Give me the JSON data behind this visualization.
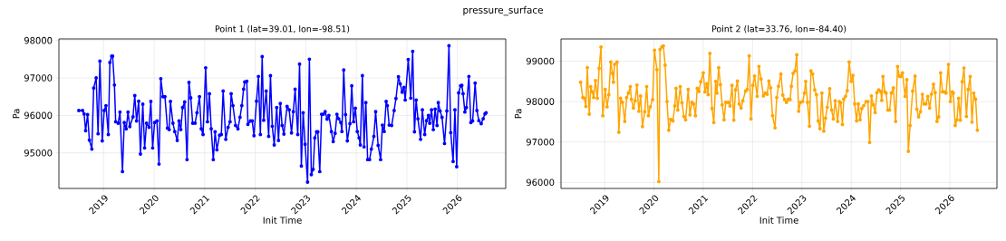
{
  "chart_data": [
    {
      "type": "line",
      "title": "Point 1 (lat=39.01, lon=-98.51)",
      "xlabel": "Init Time",
      "ylabel": "Pa",
      "annotations": [
        "pressure_surface"
      ],
      "x": [
        "2018-07-06",
        "2018-08-02",
        "2018-08-13",
        "2018-08-24",
        "2018-09-07",
        "2018-09-20",
        "2018-10-08",
        "2018-10-21",
        "2018-11-08",
        "2018-11-22",
        "2018-12-05",
        "2018-12-22",
        "2019-01-05",
        "2019-01-18",
        "2019-02-04",
        "2019-02-15",
        "2019-02-28",
        "2019-03-07",
        "2019-03-20",
        "2019-03-29",
        "2019-04-16",
        "2019-04-29",
        "2019-05-17",
        "2019-05-30",
        "2019-06-13",
        "2019-06-26",
        "2019-07-09",
        "2019-08-01",
        "2019-08-14",
        "2019-08-27",
        "2019-09-11",
        "2019-09-24",
        "2019-10-11",
        "2019-10-24",
        "2019-11-07",
        "2019-11-25",
        "2019-12-08",
        "2019-12-21",
        "2020-01-04",
        "2020-01-21",
        "2020-02-05",
        "2020-02-18",
        "2020-03-05",
        "2020-03-19",
        "2020-04-06",
        "2020-04-19",
        "2020-04-28",
        "2020-05-16",
        "2020-05-29",
        "2020-06-16",
        "2020-06-29",
        "2020-07-12",
        "2020-07-25",
        "2020-08-09",
        "2020-08-26",
        "2020-09-09",
        "2020-09-22",
        "2020-10-06",
        "2020-10-23",
        "2020-11-06",
        "2020-11-24",
        "2020-12-07",
        "2020-12-20",
        "2021-01-08",
        "2021-01-21",
        "2021-02-04",
        "2021-02-17",
        "2021-03-04",
        "2021-03-17",
        "2021-03-30",
        "2021-04-18",
        "2021-05-01",
        "2021-05-14",
        "2021-06-02",
        "2021-06-19",
        "2021-07-03",
        "2021-07-11",
        "2021-07-24",
        "2021-08-12",
        "2021-08-29",
        "2021-09-13",
        "2021-09-26",
        "2021-10-09",
        "2021-10-17",
        "2021-11-01",
        "2021-11-09",
        "2021-11-27",
        "2021-12-10",
        "2021-12-23",
        "2022-01-10",
        "2022-01-24",
        "2022-02-07",
        "2022-02-20",
        "2022-03-03",
        "2022-03-21",
        "2022-04-08",
        "2022-04-21",
        "2022-05-04",
        "2022-05-18",
        "2022-06-05",
        "2022-06-18",
        "2022-07-01",
        "2022-07-14",
        "2022-07-27",
        "2022-08-19",
        "2022-09-03",
        "2022-09-20",
        "2022-10-03",
        "2022-10-16",
        "2022-11-04",
        "2022-11-17",
        "2022-11-30",
        "2022-12-13",
        "2022-12-27",
        "2023-01-14",
        "2023-01-27",
        "2023-02-10",
        "2023-02-23",
        "2023-03-07",
        "2023-03-20",
        "2023-03-29",
        "2023-04-12",
        "2023-04-25",
        "2023-05-08",
        "2023-05-21",
        "2023-06-04",
        "2023-06-17",
        "2023-07-05",
        "2023-07-18",
        "2023-08-01",
        "2023-08-14",
        "2023-08-27",
        "2023-09-11",
        "2023-09-19",
        "2023-10-02",
        "2023-10-15",
        "2023-10-28",
        "2023-11-16",
        "2023-11-29",
        "2023-12-12",
        "2023-12-25",
        "2024-01-08",
        "2024-01-21",
        "2024-01-30",
        "2024-02-14",
        "2024-02-26",
        "2024-03-10",
        "2024-03-23",
        "2024-04-06",
        "2024-04-19",
        "2024-05-07",
        "2024-05-20",
        "2024-06-07",
        "2024-06-25",
        "2024-07-08",
        "2024-07-21",
        "2024-08-04",
        "2024-08-13",
        "2024-08-26",
        "2024-09-13",
        "2024-10-01",
        "2024-10-14",
        "2024-11-01",
        "2024-11-14",
        "2024-11-28",
        "2024-12-11",
        "2024-12-20",
        "2025-01-11",
        "2025-01-29",
        "2025-02-12",
        "2025-02-25",
        "2025-03-09",
        "2025-03-22",
        "2025-04-10",
        "2025-04-23",
        "2025-05-10",
        "2025-05-23",
        "2025-06-06",
        "2025-06-15",
        "2025-06-28",
        "2025-07-11",
        "2025-07-24",
        "2025-08-07",
        "2025-08-16",
        "2025-08-29",
        "2025-09-12",
        "2025-09-30",
        "2025-10-17",
        "2025-11-01",
        "2025-11-14",
        "2025-12-01",
        "2025-12-14",
        "2025-12-27",
        "2026-01-10",
        "2026-01-24",
        "2026-02-02",
        "2026-02-11",
        "2026-02-24",
        "2026-03-07",
        "2026-03-25",
        "2026-04-08",
        "2026-04-21",
        "2026-05-09",
        "2026-05-22",
        "2026-06-05",
        "2026-06-22",
        "2026-07-06",
        "2026-07-19",
        "2026-07-27"
      ],
      "series": [
        {
          "color": "#0000ff",
          "values": [
            96130,
            96130,
            96040,
            95590,
            96020,
            95340,
            95100,
            96730,
            97000,
            95510,
            97450,
            95320,
            96130,
            96260,
            95490,
            97410,
            97580,
            97580,
            96810,
            95830,
            95790,
            96090,
            94500,
            95810,
            95640,
            96090,
            95700,
            95960,
            96530,
            95850,
            96380,
            94970,
            96300,
            95130,
            95790,
            95680,
            96370,
            95130,
            95810,
            95850,
            94700,
            96980,
            96500,
            96500,
            95660,
            95620,
            96370,
            95790,
            95570,
            95330,
            95850,
            95620,
            96210,
            96360,
            94820,
            96880,
            96470,
            95790,
            95790,
            96070,
            96500,
            95640,
            95490,
            97270,
            95830,
            96580,
            95640,
            94820,
            95560,
            95080,
            95470,
            95490,
            96650,
            95360,
            95680,
            95830,
            96580,
            96260,
            95730,
            95640,
            95950,
            96260,
            96700,
            96890,
            96910,
            95760,
            95850,
            95850,
            95460,
            96380,
            97040,
            95490,
            97570,
            95870,
            96650,
            95440,
            97060,
            95710,
            95210,
            96210,
            95330,
            96320,
            95730,
            95500,
            96240,
            96150,
            95530,
            96100,
            96700,
            95490,
            97370,
            94650,
            96070,
            95230,
            94220,
            97500,
            94420,
            94560,
            95400,
            95560,
            95560,
            94500,
            96030,
            96030,
            96100,
            95900,
            96000,
            95570,
            95300,
            95520,
            96030,
            95910,
            95810,
            95570,
            97210,
            96020,
            95320,
            95780,
            96790,
            95830,
            96190,
            95570,
            95400,
            95210,
            97060,
            95160,
            96340,
            94820,
            94820,
            95100,
            95440,
            96100,
            95200,
            94820,
            95740,
            95570,
            96370,
            96260,
            95740,
            95730,
            96130,
            96450,
            97030,
            96840,
            96620,
            96750,
            96410,
            97490,
            96460,
            97710,
            95560,
            96410,
            95910,
            95360,
            96150,
            95490,
            95860,
            96000,
            95790,
            96150,
            95620,
            96170,
            95730,
            96340,
            96120,
            95950,
            95250,
            96120,
            97860,
            95540,
            94770,
            96150,
            94630,
            96600,
            96790,
            96800,
            96580,
            96090,
            96210,
            97040,
            95810,
            95850,
            96860,
            96130,
            95860,
            95780,
            95910,
            96040,
            96070
          ]
        }
      ],
      "xlim": [
        "2018-02-12",
        "2026-12-16"
      ],
      "xticks": [
        "2019",
        "2020",
        "2021",
        "2022",
        "2023",
        "2024",
        "2025",
        "2026"
      ],
      "ylim": [
        94050,
        98040
      ],
      "yticks": [
        95000,
        96000,
        97000,
        98000
      ],
      "grid": true,
      "marker": "circle",
      "line_style": "solid"
    },
    {
      "type": "line",
      "title": "Point 2 (lat=33.76, lon=-84.40)",
      "xlabel": "Init Time",
      "ylabel": "Pa",
      "x": [
        "2018-07-07",
        "2018-07-23",
        "2018-08-04",
        "2018-08-15",
        "2018-08-26",
        "2018-09-09",
        "2018-09-20",
        "2018-10-01",
        "2018-10-12",
        "2018-10-25",
        "2018-11-08",
        "2018-11-21",
        "2018-12-05",
        "2018-12-18",
        "2019-01-05",
        "2019-01-19",
        "2019-02-01",
        "2019-02-15",
        "2019-02-28",
        "2019-03-07",
        "2019-03-15",
        "2019-04-03",
        "2019-04-16",
        "2019-04-29",
        "2019-05-13",
        "2019-05-30",
        "2019-06-13",
        "2019-06-26",
        "2019-07-10",
        "2019-07-18",
        "2019-08-02",
        "2019-08-15",
        "2019-08-28",
        "2019-09-11",
        "2019-09-24",
        "2019-10-08",
        "2019-10-25",
        "2019-11-08",
        "2019-11-21",
        "2019-12-05",
        "2019-12-22",
        "2020-01-05",
        "2020-01-23",
        "2020-02-06",
        "2020-02-15",
        "2020-02-28",
        "2020-03-11",
        "2020-03-24",
        "2020-04-07",
        "2020-04-20",
        "2020-05-04",
        "2020-05-21",
        "2020-06-04",
        "2020-06-13",
        "2020-06-26",
        "2020-07-14",
        "2020-07-27",
        "2020-08-10",
        "2020-08-23",
        "2020-09-11",
        "2020-09-24",
        "2020-10-08",
        "2020-10-21",
        "2020-11-04",
        "2020-11-17",
        "2020-11-30",
        "2020-12-13",
        "2021-01-01",
        "2021-01-14",
        "2021-01-27",
        "2021-02-06",
        "2021-02-19",
        "2021-03-07",
        "2021-03-20",
        "2021-04-03",
        "2021-04-12",
        "2021-04-25",
        "2021-05-08",
        "2021-05-21",
        "2021-06-04",
        "2021-06-17",
        "2021-07-05",
        "2021-07-18",
        "2021-08-02",
        "2021-08-15",
        "2021-08-28",
        "2021-09-11",
        "2021-09-24",
        "2021-10-08",
        "2021-10-21",
        "2021-11-10",
        "2021-11-23",
        "2021-12-07",
        "2021-12-20",
        "2022-01-03",
        "2022-01-16",
        "2022-02-04",
        "2022-02-17",
        "2022-03-05",
        "2022-03-22",
        "2022-04-06",
        "2022-04-19",
        "2022-05-02",
        "2022-05-15",
        "2022-05-29",
        "2022-06-16",
        "2022-06-29",
        "2022-07-12",
        "2022-07-30",
        "2022-08-13",
        "2022-08-26",
        "2022-09-09",
        "2022-09-23",
        "2022-10-06",
        "2022-10-15",
        "2022-10-28",
        "2022-11-11",
        "2022-11-24",
        "2022-12-08",
        "2022-12-21",
        "2023-01-07",
        "2023-01-20",
        "2023-01-29",
        "2023-02-12",
        "2023-02-26",
        "2023-03-09",
        "2023-03-22",
        "2023-04-06",
        "2023-04-19",
        "2023-05-02",
        "2023-05-15",
        "2023-05-29",
        "2023-06-12",
        "2023-06-25",
        "2023-07-08",
        "2023-07-26",
        "2023-08-09",
        "2023-08-22",
        "2023-09-05",
        "2023-09-23",
        "2023-10-06",
        "2023-10-15",
        "2023-10-28",
        "2023-11-07",
        "2023-11-20",
        "2023-12-03",
        "2023-12-17",
        "2024-01-01",
        "2024-01-14",
        "2024-01-27",
        "2024-02-10",
        "2024-02-23",
        "2024-03-07",
        "2024-03-20",
        "2024-04-03",
        "2024-04-21",
        "2024-05-04",
        "2024-05-17",
        "2024-05-30",
        "2024-06-13",
        "2024-06-27",
        "2024-07-10",
        "2024-07-23",
        "2024-08-07",
        "2024-08-15",
        "2024-08-24",
        "2024-09-07",
        "2024-09-16",
        "2024-09-29",
        "2024-10-12",
        "2024-10-25",
        "2024-11-09",
        "2024-11-26",
        "2024-12-10",
        "2024-12-23",
        "2025-01-03",
        "2025-01-16",
        "2025-02-04",
        "2025-02-17",
        "2025-02-28",
        "2025-03-13",
        "2025-04-01",
        "2025-04-19",
        "2025-05-02",
        "2025-05-15",
        "2025-05-29",
        "2025-06-12",
        "2025-06-25",
        "2025-07-08",
        "2025-07-22",
        "2025-08-05",
        "2025-08-18",
        "2025-09-02",
        "2025-09-15",
        "2025-09-28",
        "2025-10-11",
        "2025-10-25",
        "2025-11-08",
        "2025-11-21",
        "2025-12-04",
        "2025-12-22",
        "2026-01-05",
        "2026-01-19",
        "2026-01-27",
        "2026-02-10",
        "2026-02-23",
        "2026-03-07",
        "2026-03-20",
        "2026-04-03",
        "2026-04-16",
        "2026-05-04",
        "2026-05-17",
        "2026-06-01",
        "2026-06-14",
        "2026-06-27",
        "2026-07-11",
        "2026-07-24"
      ],
      "series": [
        {
          "color": "#ffa500",
          "values": [
            98480,
            98100,
            98080,
            97880,
            98840,
            97690,
            98370,
            98240,
            98100,
            98520,
            98080,
            98820,
            99350,
            97650,
            98300,
            97870,
            98170,
            98980,
            98700,
            98480,
            98920,
            98980,
            97240,
            98080,
            97980,
            97510,
            98100,
            98210,
            98370,
            98060,
            97840,
            98020,
            98410,
            97760,
            98140,
            97380,
            97750,
            98370,
            97650,
            97870,
            98050,
            99270,
            98790,
            96020,
            99290,
            99350,
            99380,
            98900,
            98000,
            97290,
            97560,
            97520,
            97890,
            98330,
            97790,
            98370,
            97970,
            97630,
            97550,
            98300,
            97670,
            97980,
            97940,
            97650,
            98330,
            98250,
            98490,
            98710,
            98240,
            98440,
            98170,
            99190,
            97830,
            97480,
            98500,
            98210,
            98840,
            98420,
            97920,
            97550,
            97980,
            97980,
            97890,
            98400,
            97540,
            98290,
            98510,
            97940,
            97840,
            98020,
            98260,
            98300,
            99130,
            97570,
            98400,
            98630,
            98130,
            98870,
            98560,
            98140,
            98210,
            98180,
            98510,
            98340,
            97650,
            97350,
            98100,
            98380,
            98680,
            98160,
            98050,
            97980,
            98060,
            98050,
            98380,
            98700,
            98760,
            99160,
            97760,
            97980,
            98000,
            98210,
            98500,
            97980,
            97390,
            98760,
            98680,
            98290,
            98170,
            97520,
            97330,
            98210,
            97270,
            97590,
            97860,
            98320,
            97790,
            97570,
            98020,
            97510,
            98000,
            97970,
            97430,
            98060,
            98130,
            98270,
            98980,
            98500,
            98650,
            97940,
            97520,
            97940,
            97550,
            97830,
            97900,
            98000,
            98000,
            96990,
            98140,
            97920,
            97730,
            98220,
            98290,
            98250,
            98030,
            98620,
            98240,
            98210,
            97790,
            97790,
            98210,
            98340,
            97510,
            98870,
            98630,
            98620,
            98710,
            98130,
            98540,
            96770,
            97410,
            98260,
            98630,
            97810,
            97620,
            97750,
            98180,
            97940,
            97940,
            98130,
            97840,
            98180,
            98430,
            98220,
            97510,
            97620,
            98710,
            98240,
            98240,
            98210,
            98920,
            98000,
            98240,
            98210,
            97410,
            97550,
            98080,
            97540,
            98490,
            98830,
            97630,
            98300,
            98620,
            97490,
            98210,
            98060,
            97290
          ]
        }
      ],
      "xlim": [
        "2018-02-12",
        "2026-12-16"
      ],
      "xticks": [
        "2019",
        "2020",
        "2021",
        "2022",
        "2023",
        "2024",
        "2025",
        "2026"
      ],
      "ylim": [
        95850,
        99550
      ],
      "yticks": [
        96000,
        97000,
        98000,
        99000
      ],
      "grid": true,
      "marker": "circle",
      "line_style": "solid"
    }
  ]
}
